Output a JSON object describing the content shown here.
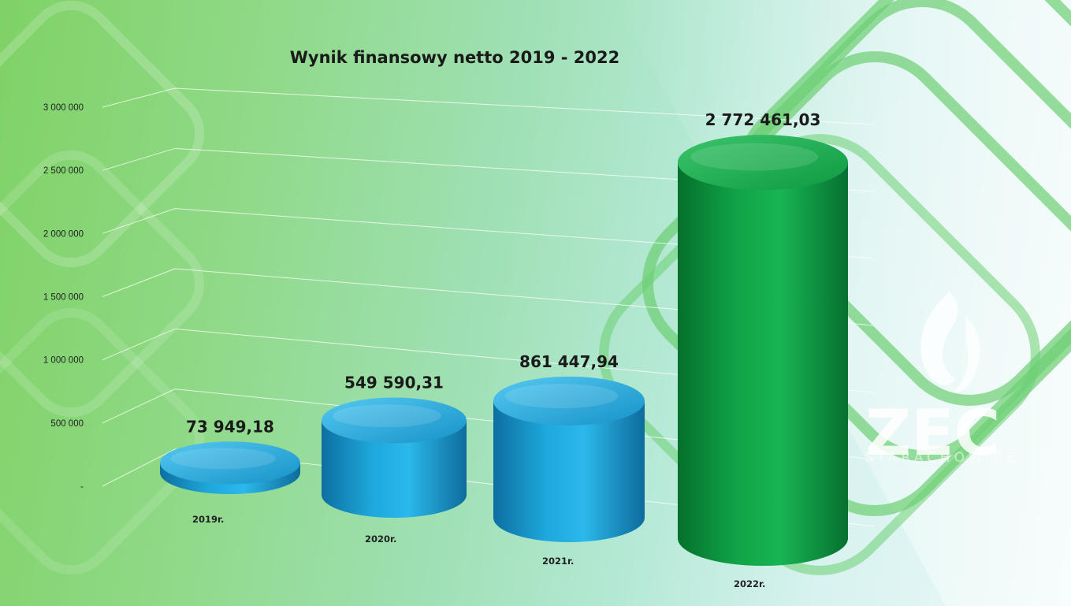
{
  "chart_data": {
    "type": "bar",
    "title": "Wynik finansowy netto 2019 - 2022",
    "categories": [
      "2019r.",
      "2020r.",
      "2021r.",
      "2022r."
    ],
    "values": [
      73949.18,
      549590.31,
      861447.94,
      2772461.03
    ],
    "data_labels": [
      "73 949,18",
      "549 590,31",
      "861 447,94",
      "2 772 461,03"
    ],
    "y_ticks": [
      0,
      500000,
      1000000,
      1500000,
      2000000,
      2500000,
      3000000
    ],
    "y_tick_labels": [
      "-",
      "500 000",
      "1 000 000",
      "1 500 000",
      "2 000 000",
      "2 500 000",
      "3 000 000"
    ],
    "ylim": [
      0,
      3000000
    ],
    "xlabel": "",
    "ylabel": "",
    "grid": true,
    "style": "3d-cylinder",
    "colors": [
      "#1aa6dd",
      "#1aa6dd",
      "#1aa6dd",
      "#0f9a40"
    ]
  },
  "logo": {
    "name": "ZEC",
    "subtitle": "STARACHOWICE"
  }
}
